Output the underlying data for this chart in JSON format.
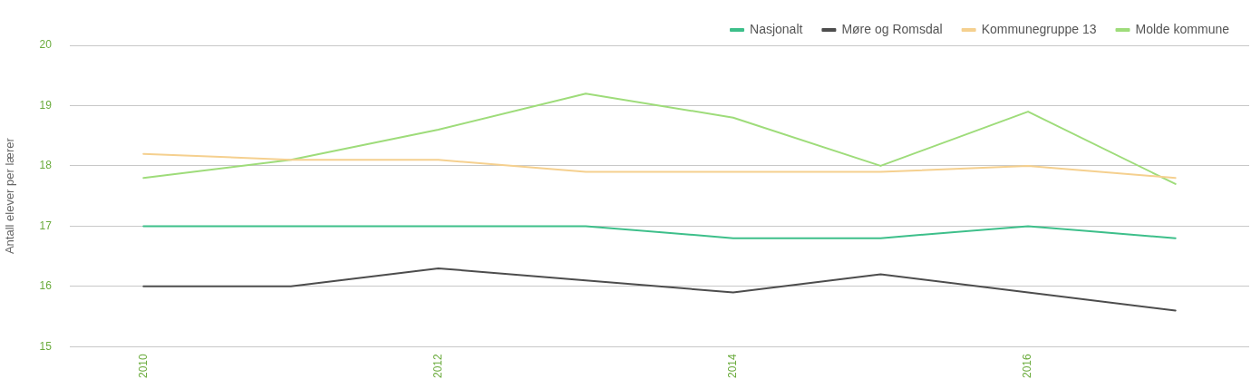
{
  "chart_data": {
    "type": "line",
    "ylabel": "Antall elever per lærer",
    "x": [
      2010,
      2011,
      2012,
      2013,
      2014,
      2015,
      2016,
      2017
    ],
    "series": [
      {
        "name": "Nasjonalt",
        "color": "#3dbf8a",
        "values": [
          17,
          17,
          17,
          17,
          16.8,
          16.8,
          17,
          16.8
        ]
      },
      {
        "name": "Møre og Romsdal",
        "color": "#4d4d4d",
        "values": [
          16,
          16,
          16.3,
          16.1,
          15.9,
          16.2,
          15.9,
          15.6
        ]
      },
      {
        "name": "Kommunegruppe 13",
        "color": "#f5d08f",
        "values": [
          18.2,
          18.1,
          18.1,
          17.9,
          17.9,
          17.9,
          18,
          17.8
        ]
      },
      {
        "name": "Molde kommune",
        "color": "#9edc7a",
        "values": [
          17.8,
          18.1,
          18.6,
          19.2,
          18.8,
          18,
          18.9,
          17.7
        ]
      }
    ],
    "xlim": [
      2009.5,
      2017.5
    ],
    "xticks": [
      2010,
      2012,
      2014,
      2016
    ],
    "ylim": [
      15,
      20
    ],
    "yticks": [
      15,
      16,
      17,
      18,
      19,
      20
    ],
    "grid": "y",
    "legend": "top right",
    "marker": "none",
    "line_style": "solid"
  }
}
